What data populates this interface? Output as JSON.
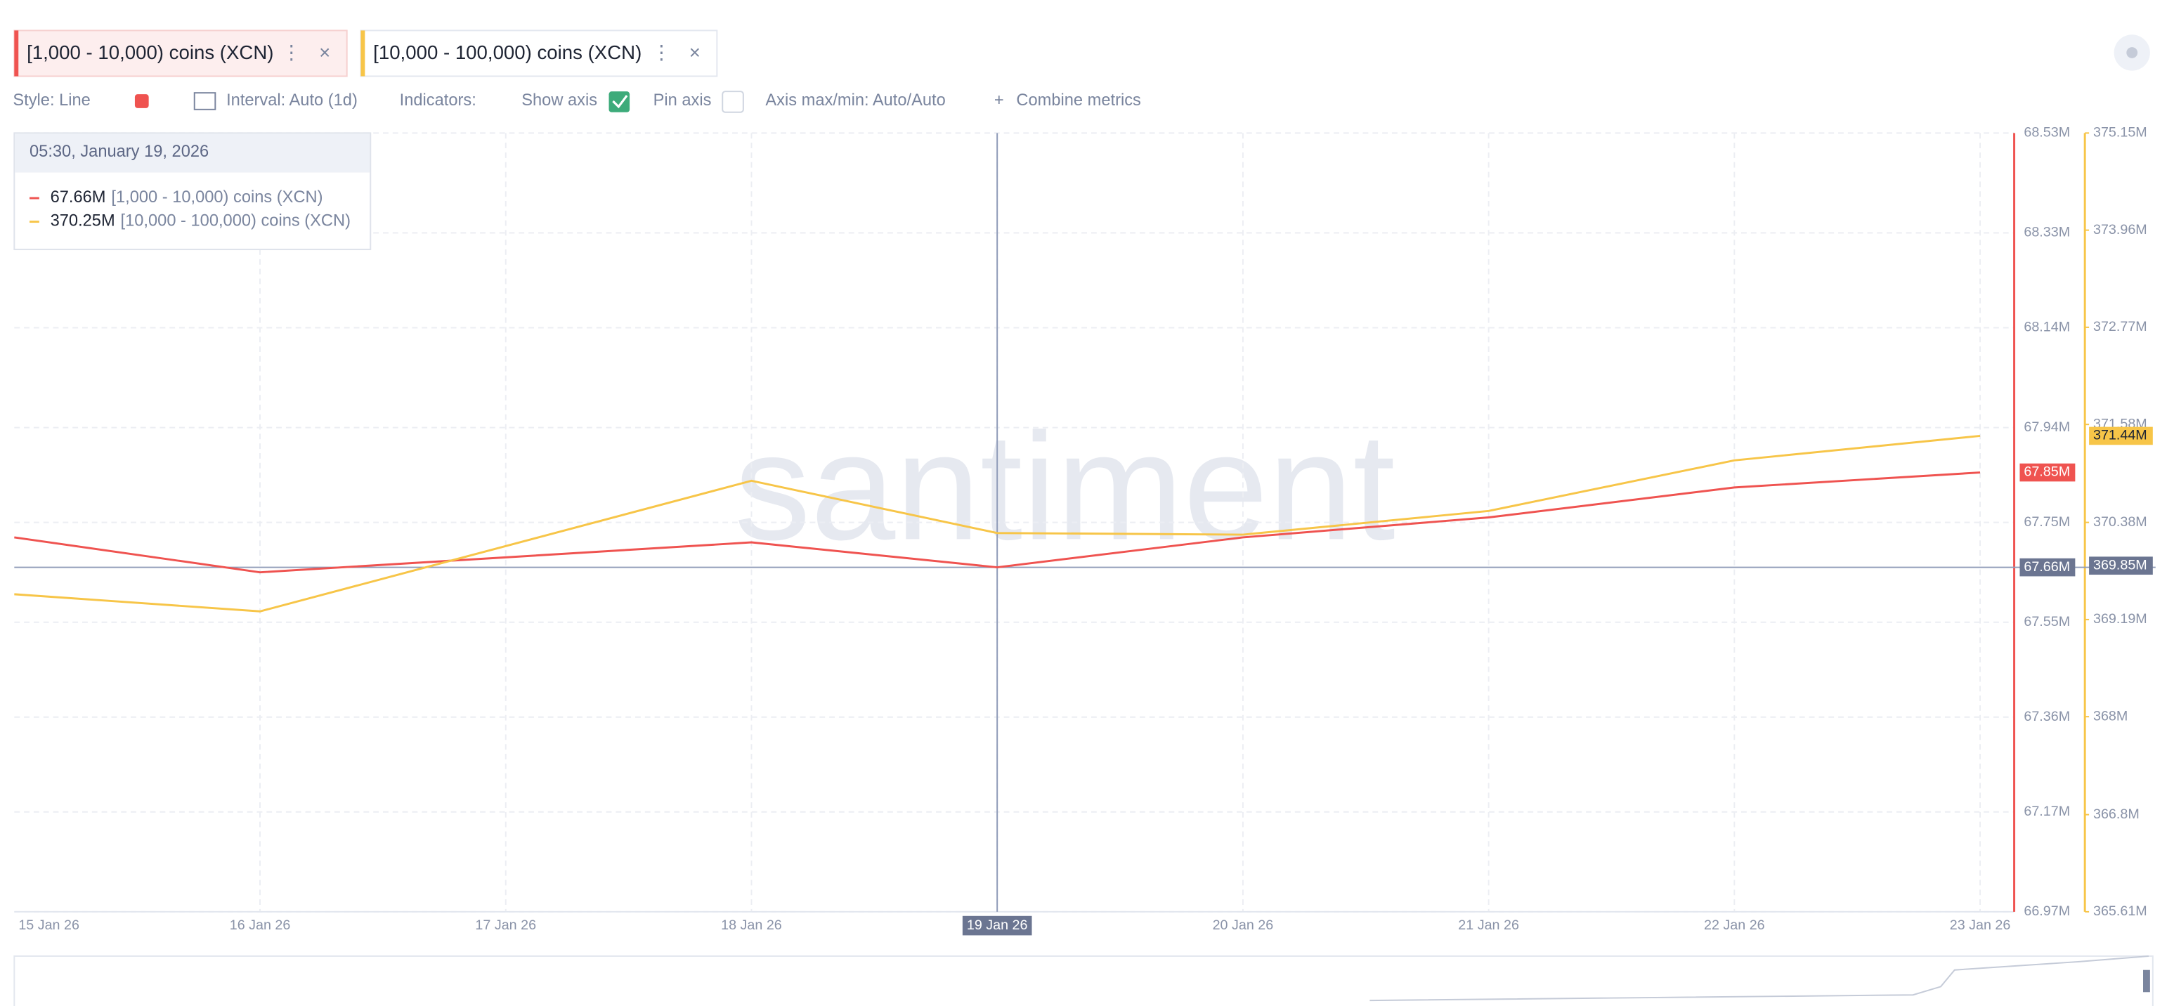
{
  "toolbar": {
    "style": "Style: Line",
    "interval": "Interval: Auto (1d)",
    "indicators": "Indicators:",
    "show_axis": "Show axis",
    "pin_axis": "Pin axis",
    "axis_minmax": "Axis max/min: Auto/Auto",
    "combine": "Combine metrics"
  },
  "chart_data": {
    "type": "line",
    "watermark": "santiment",
    "categories": [
      "15 Jan 26",
      "16 Jan 26",
      "17 Jan 26",
      "18 Jan 26",
      "19 Jan 26",
      "20 Jan 26",
      "21 Jan 26",
      "22 Jan 26",
      "23 Jan 26"
    ],
    "series": [
      {
        "name": "[1,000 - 10,000) coins (XCN)",
        "color": "#ef5350",
        "axis": "y",
        "values": [
          67.72,
          67.65,
          67.68,
          67.71,
          67.66,
          67.72,
          67.76,
          67.82,
          67.85
        ],
        "last_label": "67.85M"
      },
      {
        "name": "[10,000 - 100,000) coins (XCN)",
        "color": "#f7c548",
        "axis": "y2",
        "values": [
          369.5,
          369.29,
          370.09,
          370.89,
          370.25,
          370.23,
          370.52,
          371.14,
          371.44
        ],
        "last_label": "371.44M"
      }
    ],
    "ylim": [
      66.97,
      68.53
    ],
    "yticks": [
      {
        "value": 68.53,
        "label": "68.53M"
      },
      {
        "value": 68.33,
        "label": "68.33M"
      },
      {
        "value": 68.14,
        "label": "68.14M"
      },
      {
        "value": 67.94,
        "label": "67.94M"
      },
      {
        "value": 67.75,
        "label": "67.75M"
      },
      {
        "value": 67.55,
        "label": "67.55M"
      },
      {
        "value": 67.36,
        "label": "67.36M"
      },
      {
        "value": 67.17,
        "label": "67.17M"
      },
      {
        "value": 66.97,
        "label": "66.97M"
      }
    ],
    "y2lim": [
      365.61,
      375.15
    ],
    "y2ticks": [
      {
        "value": 375.15,
        "label": "375.15M"
      },
      {
        "value": 373.96,
        "label": "373.96M"
      },
      {
        "value": 372.77,
        "label": "372.77M"
      },
      {
        "value": 371.58,
        "label": "371.58M"
      },
      {
        "value": 370.38,
        "label": "370.38M"
      },
      {
        "value": 369.19,
        "label": "369.19M"
      },
      {
        "value": 368,
        "label": "368M"
      },
      {
        "value": 366.8,
        "label": "366.8M"
      },
      {
        "value": 365.61,
        "label": "365.61M"
      }
    ],
    "grid": true,
    "crosshair": {
      "y": {
        "value": 67.66,
        "label": "67.66M"
      },
      "y2": {
        "value": 369.85,
        "label": "369.85M"
      }
    },
    "tooltip": {
      "title": "05:30, January 19, 2026",
      "values": [
        "67.66M",
        "370.25M"
      ]
    }
  }
}
